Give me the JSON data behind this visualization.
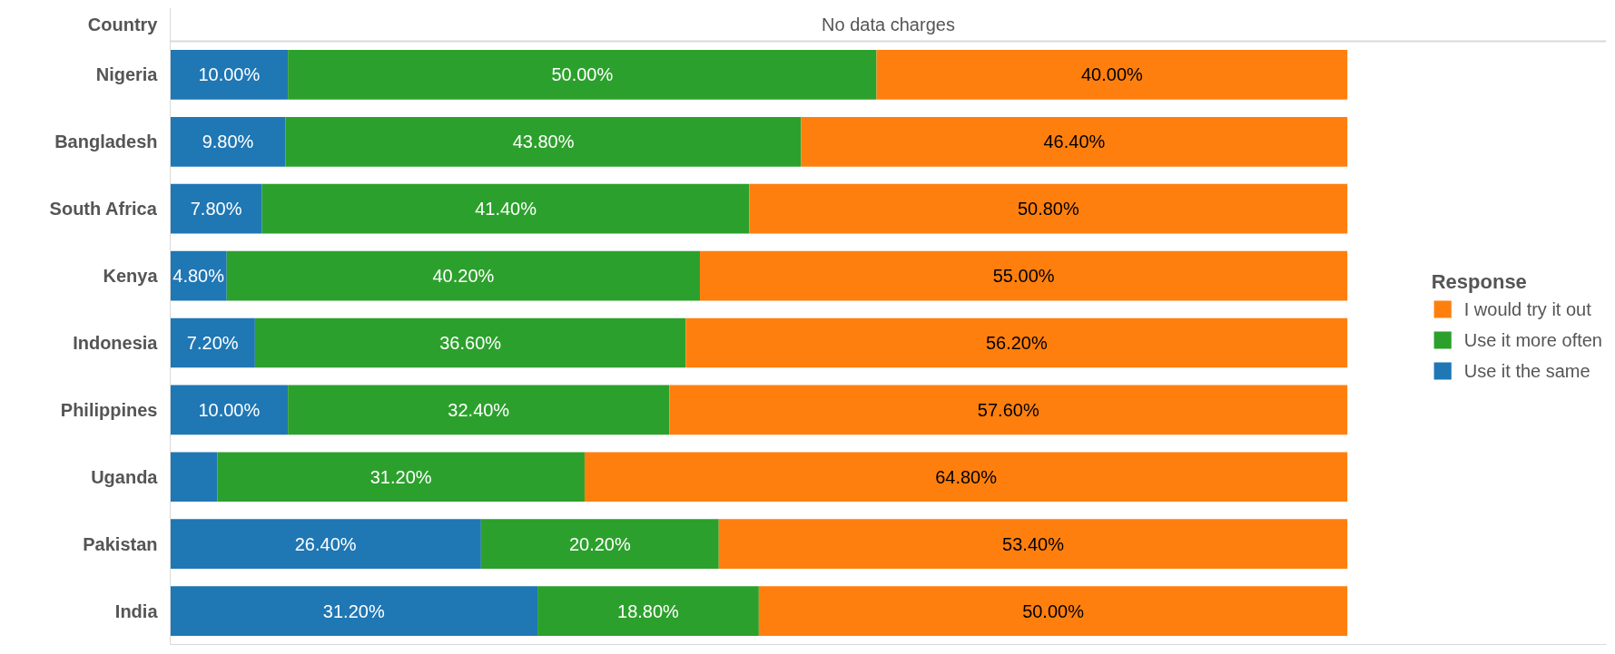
{
  "chart_data": {
    "type": "bar",
    "orientation": "horizontal",
    "stacked": true,
    "title": "No data charges",
    "ylabel": "Country",
    "legend_title": "Response",
    "legend": "right",
    "categories": [
      "Nigeria",
      "Bangladesh",
      "South Africa",
      "Kenya",
      "Indonesia",
      "Philippines",
      "Uganda",
      "Pakistan",
      "India"
    ],
    "series": [
      {
        "name": "Use it the same",
        "color": "#1f77b4",
        "values": [
          10.0,
          9.8,
          7.8,
          4.8,
          7.2,
          10.0,
          4.0,
          26.4,
          31.2
        ],
        "value_labels": [
          "10.00%",
          "9.80%",
          "7.80%",
          "4.80%",
          "7.20%",
          "10.00%",
          null,
          "26.40%",
          "31.20%"
        ]
      },
      {
        "name": "Use it more often",
        "color": "#2ca02c",
        "values": [
          50.0,
          43.8,
          41.4,
          40.2,
          36.6,
          32.4,
          31.2,
          20.2,
          18.8
        ],
        "value_labels": [
          "50.00%",
          "43.80%",
          "41.40%",
          "40.20%",
          "36.60%",
          "32.40%",
          "31.20%",
          "20.20%",
          "18.80%"
        ]
      },
      {
        "name": "I would try it out",
        "color": "#ff7f0e",
        "values": [
          40.0,
          46.4,
          50.8,
          55.0,
          56.2,
          57.6,
          64.8,
          53.4,
          50.0
        ],
        "value_labels": [
          "40.00%",
          "46.40%",
          "50.80%",
          "55.00%",
          "56.20%",
          "57.60%",
          "64.80%",
          "53.40%",
          "50.00%"
        ]
      }
    ]
  }
}
